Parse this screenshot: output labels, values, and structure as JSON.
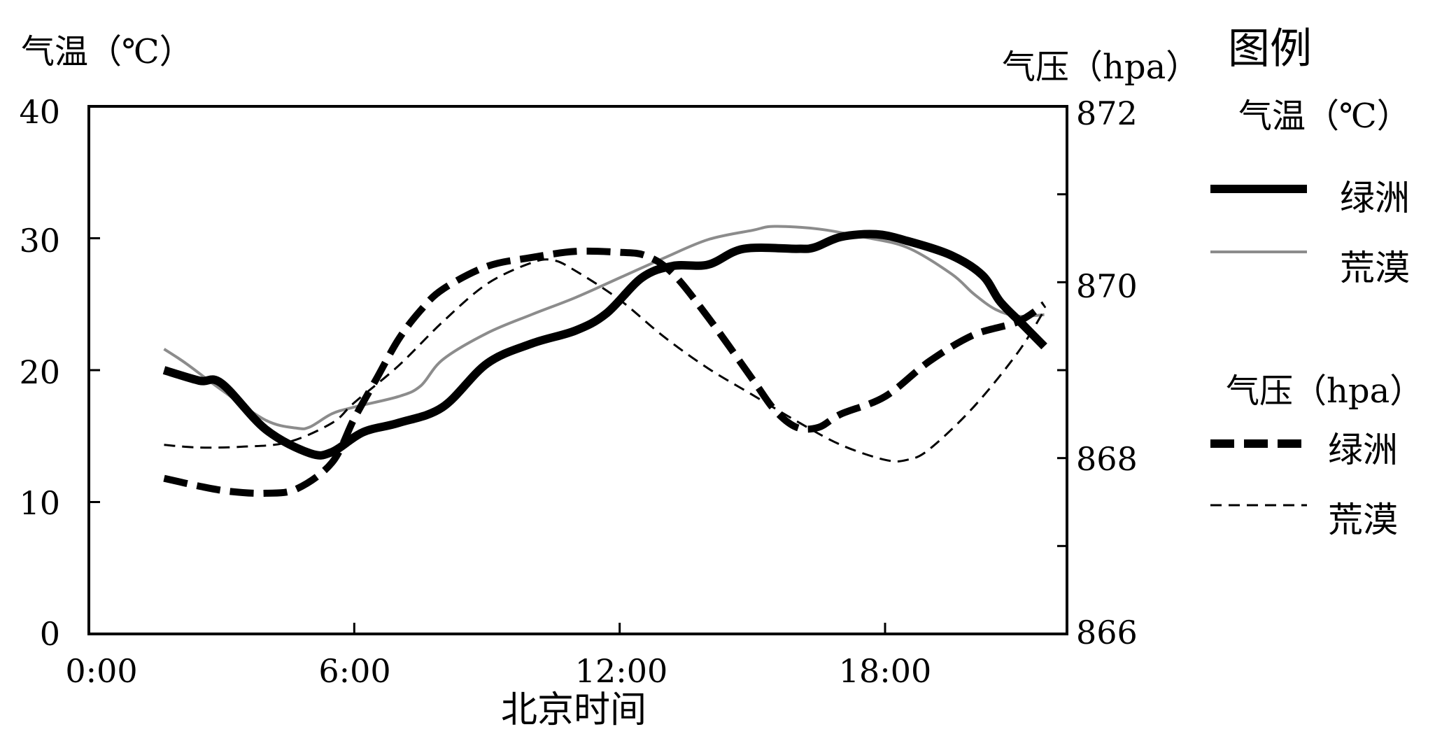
{
  "chart_data": {
    "type": "line",
    "xlabel": "北京时间",
    "x_ticks": [
      "0:00",
      "6:00",
      "12:00",
      "18:00"
    ],
    "x_tick_hours": [
      0,
      6,
      12,
      18
    ],
    "xlim": [
      0,
      22
    ],
    "y_left": {
      "label": "气温（℃）",
      "range": [
        0,
        40
      ],
      "ticks": [
        "0",
        "10",
        "20",
        "30",
        "40"
      ]
    },
    "y_right": {
      "label": "气压（hpa）",
      "range": [
        866,
        872
      ],
      "ticks": [
        "866",
        "868",
        "870",
        "872"
      ]
    },
    "legend": {
      "title": "图例",
      "groups": [
        {
          "heading": "气温（℃）",
          "items": [
            "绿洲",
            "荒漠"
          ]
        },
        {
          "heading": "气压（hpa）",
          "items": [
            "绿洲",
            "荒漠"
          ]
        }
      ]
    },
    "series": [
      {
        "name": "绿洲",
        "group": "气温（℃）",
        "axis": "left",
        "style": "thick-solid",
        "points": [
          [
            1.7,
            20.0
          ],
          [
            2.5,
            19.2
          ],
          [
            3.0,
            19.0
          ],
          [
            4.0,
            15.5
          ],
          [
            5.0,
            13.7
          ],
          [
            5.5,
            13.8
          ],
          [
            6.2,
            15.3
          ],
          [
            7.0,
            16.0
          ],
          [
            8.0,
            17.2
          ],
          [
            9.0,
            20.5
          ],
          [
            10.0,
            22.0
          ],
          [
            11.0,
            23.0
          ],
          [
            11.7,
            24.3
          ],
          [
            12.5,
            27.0
          ],
          [
            13.2,
            27.9
          ],
          [
            14.0,
            28.0
          ],
          [
            14.8,
            29.2
          ],
          [
            16.0,
            29.2
          ],
          [
            16.4,
            29.3
          ],
          [
            17.0,
            30.1
          ],
          [
            17.8,
            30.3
          ],
          [
            18.5,
            29.8
          ],
          [
            19.5,
            28.7
          ],
          [
            20.2,
            27.2
          ],
          [
            20.6,
            25.2
          ],
          [
            21.1,
            23.5
          ],
          [
            21.6,
            21.8
          ]
        ]
      },
      {
        "name": "荒漠",
        "group": "气温（℃）",
        "axis": "left",
        "style": "thin-solid-gray",
        "points": [
          [
            1.7,
            21.6
          ],
          [
            2.2,
            20.5
          ],
          [
            3.0,
            18.5
          ],
          [
            4.0,
            16.2
          ],
          [
            4.7,
            15.6
          ],
          [
            5.0,
            15.7
          ],
          [
            5.5,
            16.7
          ],
          [
            6.0,
            17.2
          ],
          [
            7.0,
            18.0
          ],
          [
            7.5,
            18.8
          ],
          [
            8.0,
            20.8
          ],
          [
            9.0,
            22.8
          ],
          [
            10.0,
            24.2
          ],
          [
            11.0,
            25.5
          ],
          [
            12.0,
            27.0
          ],
          [
            13.0,
            28.5
          ],
          [
            14.0,
            29.9
          ],
          [
            15.0,
            30.6
          ],
          [
            15.5,
            30.9
          ],
          [
            16.5,
            30.7
          ],
          [
            17.5,
            30.1
          ],
          [
            18.5,
            29.3
          ],
          [
            19.5,
            27.3
          ],
          [
            20.0,
            25.8
          ],
          [
            20.5,
            24.6
          ],
          [
            21.0,
            24.1
          ],
          [
            21.6,
            24.2
          ]
        ]
      },
      {
        "name": "绿洲",
        "group": "气压（hpa）",
        "axis": "right",
        "style": "thick-dashed",
        "points": [
          [
            1.7,
            867.77
          ],
          [
            2.5,
            867.68
          ],
          [
            3.2,
            867.62
          ],
          [
            4.0,
            867.6
          ],
          [
            4.7,
            867.65
          ],
          [
            5.5,
            867.95
          ],
          [
            6.0,
            868.45
          ],
          [
            6.5,
            868.9
          ],
          [
            7.0,
            869.35
          ],
          [
            7.5,
            869.68
          ],
          [
            8.0,
            869.92
          ],
          [
            9.0,
            870.18
          ],
          [
            10.0,
            870.28
          ],
          [
            11.0,
            870.35
          ],
          [
            12.0,
            870.34
          ],
          [
            12.6,
            870.3
          ],
          [
            13.2,
            870.1
          ],
          [
            14.0,
            869.6
          ],
          [
            15.0,
            868.9
          ],
          [
            15.5,
            868.55
          ],
          [
            16.0,
            868.35
          ],
          [
            16.5,
            868.35
          ],
          [
            17.0,
            868.5
          ],
          [
            18.0,
            868.7
          ],
          [
            19.0,
            869.1
          ],
          [
            20.0,
            869.4
          ],
          [
            21.0,
            869.55
          ],
          [
            21.6,
            869.75
          ]
        ]
      },
      {
        "name": "荒漠",
        "group": "气压（hpa）",
        "axis": "right",
        "style": "thin-dashed",
        "points": [
          [
            1.7,
            868.15
          ],
          [
            2.5,
            868.12
          ],
          [
            3.5,
            868.13
          ],
          [
            4.5,
            868.18
          ],
          [
            5.5,
            868.4
          ],
          [
            6.0,
            868.63
          ],
          [
            7.0,
            869.05
          ],
          [
            8.0,
            869.55
          ],
          [
            9.0,
            869.98
          ],
          [
            10.0,
            870.22
          ],
          [
            10.5,
            870.25
          ],
          [
            11.0,
            870.13
          ],
          [
            12.0,
            869.8
          ],
          [
            13.0,
            869.38
          ],
          [
            14.0,
            869.02
          ],
          [
            15.0,
            868.72
          ],
          [
            16.0,
            868.42
          ],
          [
            17.0,
            868.15
          ],
          [
            18.0,
            867.98
          ],
          [
            18.5,
            867.98
          ],
          [
            19.0,
            868.1
          ],
          [
            20.0,
            868.58
          ],
          [
            21.0,
            869.2
          ],
          [
            21.6,
            869.68
          ]
        ]
      }
    ]
  }
}
